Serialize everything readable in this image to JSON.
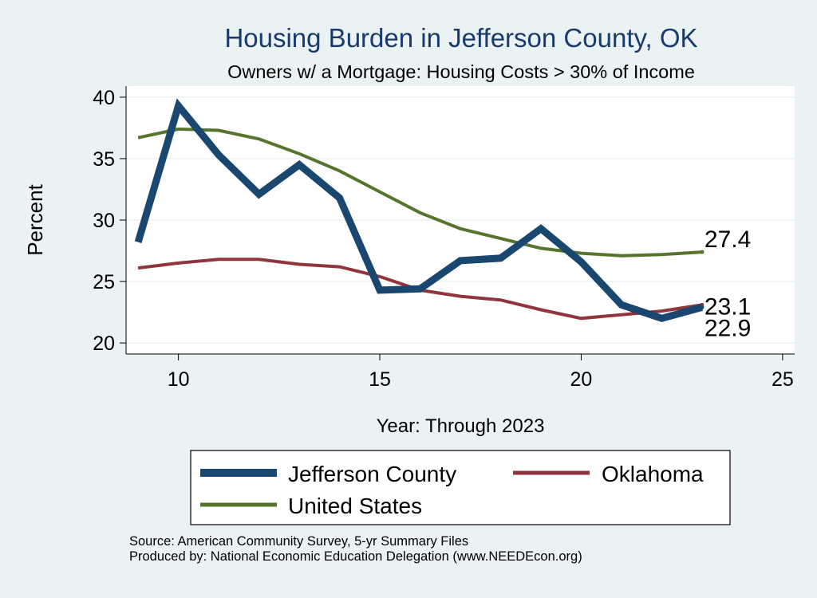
{
  "colors": {
    "background": "#eaf2f3",
    "plot_background": "#ffffff",
    "jefferson": "#1a476f",
    "oklahoma": "#90353b",
    "us": "#55752f",
    "title": "#1a3a6c"
  },
  "chart_data": {
    "type": "line",
    "title": "Housing Burden in Jefferson County, OK",
    "subtitle": "Owners w/ a Mortgage: Housing Costs > 30% of Income",
    "xlabel": "Year: Through 2023",
    "ylabel": "Percent",
    "xlim": [
      8.7,
      25.3
    ],
    "ylim": [
      19.1,
      40.9
    ],
    "xticks": [
      10,
      15,
      20,
      25
    ],
    "yticks": [
      20,
      25,
      30,
      35,
      40
    ],
    "grid": true,
    "legend_position": "bottom",
    "series": [
      {
        "key": "jefferson",
        "name": "Jefferson County",
        "x": [
          9,
          10,
          11,
          12,
          13,
          14,
          15,
          16,
          17,
          18,
          19,
          20,
          21,
          22,
          23
        ],
        "values": [
          28.2,
          39.3,
          35.3,
          32.1,
          34.5,
          31.8,
          24.3,
          24.4,
          26.7,
          26.9,
          29.3,
          26.6,
          23.1,
          22.0,
          22.9
        ],
        "end_label": "22.9"
      },
      {
        "key": "oklahoma",
        "name": "Oklahoma",
        "x": [
          9,
          10,
          11,
          12,
          13,
          14,
          15,
          16,
          17,
          18,
          19,
          20,
          21,
          22,
          23
        ],
        "values": [
          26.1,
          26.5,
          26.8,
          26.8,
          26.4,
          26.2,
          25.4,
          24.3,
          23.8,
          23.5,
          22.7,
          22.0,
          22.3,
          22.6,
          23.1
        ],
        "end_label": "23.1"
      },
      {
        "key": "us",
        "name": "United States",
        "x": [
          9,
          10,
          11,
          12,
          13,
          14,
          15,
          16,
          17,
          18,
          19,
          20,
          21,
          22,
          23
        ],
        "values": [
          36.7,
          37.4,
          37.3,
          36.6,
          35.4,
          34.0,
          32.3,
          30.6,
          29.3,
          28.5,
          27.7,
          27.3,
          27.1,
          27.2,
          27.4
        ],
        "end_label": "27.4"
      }
    ]
  },
  "legend": {
    "items": [
      {
        "key": "jefferson",
        "label": "Jefferson County"
      },
      {
        "key": "oklahoma",
        "label": "Oklahoma"
      },
      {
        "key": "us",
        "label": "United States"
      }
    ]
  },
  "notes": {
    "source": "Source: American Community Survey, 5-yr Summary Files",
    "produced_by": "Produced by: National Economic Education Delegation (www.NEEDEcon.org)"
  }
}
